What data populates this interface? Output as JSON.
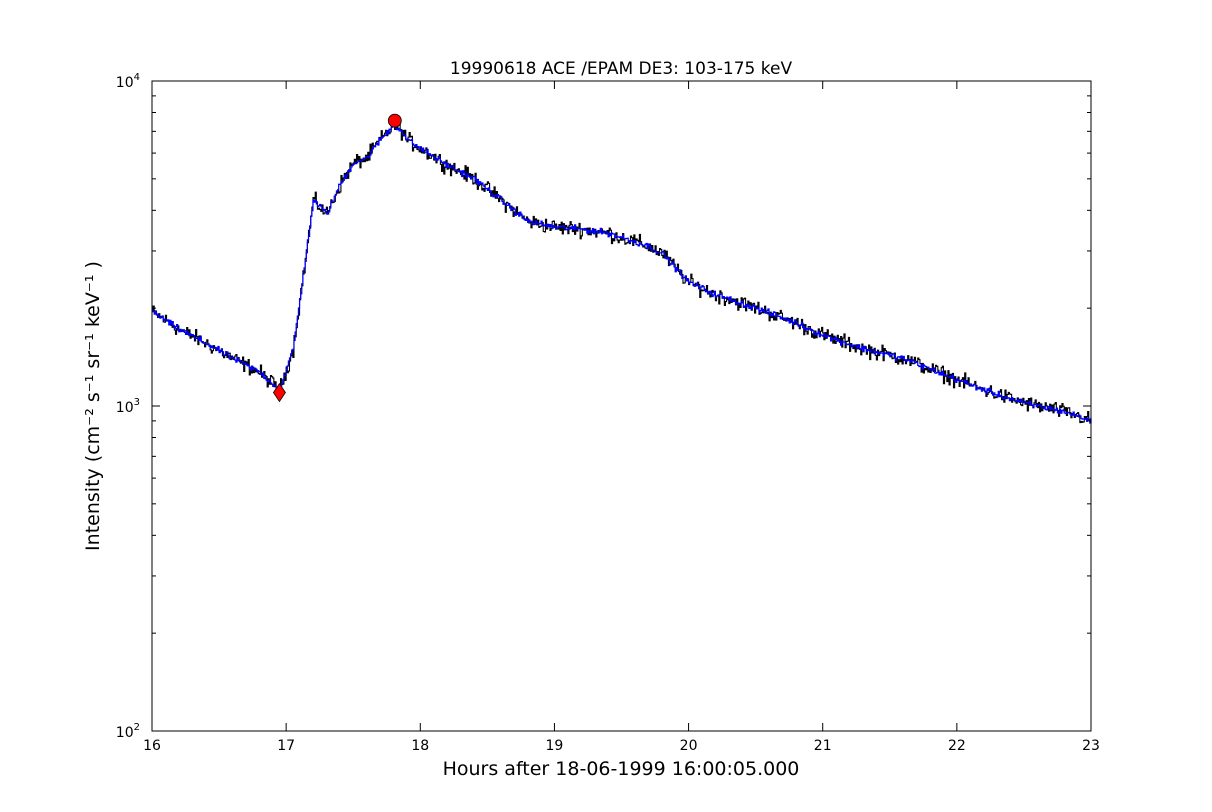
{
  "chart_data": {
    "type": "line",
    "title": "19990618 ACE /EPAM DE3: 103-175 keV",
    "xlabel": "Hours after 18-06-1999 16:00:05.000",
    "ylabel": "Intensity (cm⁻² s⁻¹ sr⁻¹ keV⁻¹ )",
    "xlim": [
      16,
      23
    ],
    "ylim": [
      100,
      10000
    ],
    "yscale": "log",
    "grid": false,
    "x_ticks": [
      "16",
      "17",
      "18",
      "19",
      "20",
      "21",
      "22",
      "23"
    ],
    "y_ticks": [
      {
        "base": "10",
        "exp": "2"
      },
      {
        "base": "10",
        "exp": "3"
      },
      {
        "base": "10",
        "exp": "4"
      }
    ],
    "series": [
      {
        "style": "raw",
        "color": "#000000",
        "x": [
          16.0,
          16.2,
          16.4,
          16.6,
          16.8,
          16.95,
          17.05,
          17.15,
          17.2,
          17.25,
          17.3,
          17.4,
          17.5,
          17.6,
          17.7,
          17.8,
          17.85,
          17.9,
          18.0,
          18.2,
          18.4,
          18.6,
          18.8,
          19.0,
          19.2,
          19.4,
          19.6,
          19.7,
          19.8,
          20.0,
          20.2,
          20.5,
          20.8,
          21.0,
          21.3,
          21.6,
          21.9,
          22.2,
          22.5,
          22.8,
          23.0
        ],
        "y": [
          1950,
          1720,
          1560,
          1400,
          1270,
          1120,
          1500,
          3000,
          4300,
          4100,
          3900,
          4800,
          5600,
          5800,
          6600,
          7300,
          7100,
          6600,
          6200,
          5500,
          5000,
          4300,
          3700,
          3550,
          3500,
          3400,
          3200,
          3100,
          2950,
          2400,
          2200,
          2000,
          1800,
          1650,
          1500,
          1400,
          1250,
          1120,
          1020,
          960,
          900
        ]
      },
      {
        "style": "smoothed",
        "color": "#0000ff",
        "x": [
          16.0,
          16.2,
          16.4,
          16.6,
          16.8,
          16.95,
          17.05,
          17.15,
          17.2,
          17.25,
          17.3,
          17.4,
          17.5,
          17.6,
          17.7,
          17.8,
          17.85,
          17.9,
          18.0,
          18.2,
          18.4,
          18.6,
          18.8,
          19.0,
          19.2,
          19.4,
          19.6,
          19.7,
          19.8,
          20.0,
          20.2,
          20.5,
          20.8,
          21.0,
          21.3,
          21.6,
          21.9,
          22.2,
          22.5,
          22.8,
          23.0
        ],
        "y": [
          1950,
          1720,
          1560,
          1400,
          1270,
          1120,
          1500,
          3000,
          4300,
          4100,
          3900,
          4800,
          5600,
          5800,
          6600,
          7300,
          7100,
          6600,
          6200,
          5500,
          5000,
          4300,
          3700,
          3550,
          3500,
          3400,
          3200,
          3100,
          2950,
          2400,
          2200,
          2000,
          1800,
          1650,
          1500,
          1400,
          1250,
          1120,
          1020,
          960,
          900
        ]
      }
    ],
    "markers": [
      {
        "shape": "diamond",
        "color": "#ff0000",
        "x": 16.95,
        "y": 1100
      },
      {
        "shape": "circle",
        "color": "#ff0000",
        "x": 17.81,
        "y": 7550
      }
    ]
  }
}
